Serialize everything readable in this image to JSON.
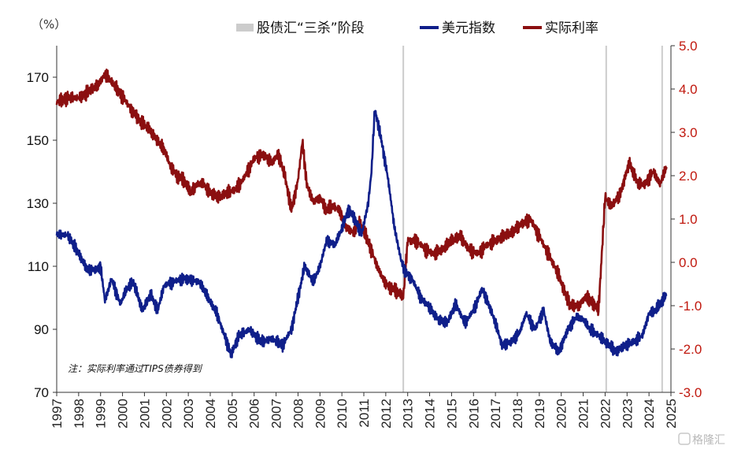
{
  "chart_data": {
    "type": "line",
    "left_unit": "（%）",
    "legend": {
      "shade": "股债汇“三杀”阶段",
      "dxy": "美元指数",
      "real": "实际利率"
    },
    "note": "注：实际利率通过TIPS债券得到",
    "watermark": "格隆汇",
    "colors": {
      "dxy": "#0f1f8a",
      "real": "#8b0f10",
      "shade": "#cccccc",
      "right_axis": "#c0180e"
    },
    "x_ticks": [
      "1997",
      "1998",
      "1999",
      "2000",
      "2001",
      "2002",
      "2003",
      "2004",
      "2005",
      "2006",
      "2007",
      "2008",
      "2009",
      "2010",
      "2011",
      "2012",
      "2013",
      "2014",
      "2015",
      "2016",
      "2017",
      "2018",
      "2019",
      "2020",
      "2021",
      "2022",
      "2023",
      "2024",
      "2025"
    ],
    "xlim": [
      1997,
      2025
    ],
    "left_axis": {
      "ylim": [
        70,
        180
      ],
      "ticks": [
        "70",
        "90",
        "110",
        "130",
        "150",
        "170"
      ]
    },
    "right_axis": {
      "ylim": [
        -3.0,
        5.0
      ],
      "ticks": [
        "-3.0",
        "-2.0",
        "-1.0",
        "0.0",
        "1.0",
        "2.0",
        "3.0",
        "4.0",
        "5.0"
      ]
    },
    "shaded_periods": [
      2012.8,
      2022.05,
      2024.6
    ],
    "series": [
      {
        "name": "美元指数",
        "axis": "left",
        "x": [
          1997.0,
          1997.5,
          1998.0,
          1998.4,
          1998.8,
          1999.0,
          1999.2,
          1999.5,
          1999.9,
          2000.2,
          2000.5,
          2000.9,
          2001.3,
          2001.6,
          2001.9,
          2002.3,
          2002.7,
          2003.0,
          2003.5,
          2003.9,
          2004.3,
          2004.7,
          2004.95,
          2005.3,
          2005.8,
          2006.3,
          2006.8,
          2007.3,
          2007.7,
          2008.0,
          2008.3,
          2008.7,
          2009.0,
          2009.3,
          2009.7,
          2010.0,
          2010.3,
          2010.6,
          2010.9,
          2011.2,
          2011.35,
          2011.5,
          2011.8,
          2012.1,
          2012.4,
          2012.7,
          2012.9,
          2013.2,
          2013.6,
          2014.0,
          2014.4,
          2014.8,
          2015.2,
          2015.6,
          2016.0,
          2016.4,
          2016.8,
          2017.0,
          2017.3,
          2017.7,
          2018.1,
          2018.4,
          2018.8,
          2019.2,
          2019.5,
          2019.9,
          2020.3,
          2020.7,
          2021.0,
          2021.3,
          2021.7,
          2022.0,
          2022.5,
          2022.9,
          2023.3,
          2023.7,
          2024.0,
          2024.3,
          2024.6,
          2024.8
        ],
        "values": [
          120,
          120,
          114,
          109,
          109,
          110,
          99,
          106,
          98,
          103,
          105,
          96,
          101,
          96,
          104,
          105,
          106,
          106,
          105,
          100,
          95,
          87,
          82,
          88,
          90,
          86,
          87,
          85,
          90,
          100,
          110,
          105,
          110,
          118,
          117,
          122,
          128,
          125,
          120,
          130,
          140,
          160,
          150,
          138,
          122,
          112,
          108,
          106,
          100,
          97,
          93,
          92,
          98,
          92,
          96,
          103,
          96,
          92,
          85,
          86,
          89,
          95,
          90,
          96,
          86,
          83,
          90,
          94,
          93,
          90,
          88,
          86,
          83,
          85,
          86,
          88,
          95,
          96,
          99,
          101
        ]
      },
      {
        "name": "实际利率",
        "axis": "right",
        "x": [
          1997.0,
          1997.5,
          1998.0,
          1998.5,
          1998.9,
          1999.2,
          1999.6,
          1999.9,
          2000.3,
          2000.6,
          2000.9,
          2001.2,
          2001.6,
          2001.9,
          2002.2,
          2002.5,
          2002.8,
          2003.1,
          2003.4,
          2003.7,
          2004.0,
          2004.4,
          2004.8,
          2005.2,
          2005.6,
          2006.0,
          2006.4,
          2006.8,
          2007.1,
          2007.4,
          2007.7,
          2008.0,
          2008.2,
          2008.4,
          2008.7,
          2009.0,
          2009.3,
          2009.6,
          2009.9,
          2010.2,
          2010.5,
          2010.8,
          2011.1,
          2011.4,
          2011.7,
          2012.0,
          2012.3,
          2012.6,
          2012.8,
          2013.0,
          2013.4,
          2013.8,
          2014.2,
          2014.6,
          2015.0,
          2015.4,
          2015.8,
          2016.2,
          2016.6,
          2017.0,
          2017.4,
          2017.8,
          2018.2,
          2018.6,
          2019.0,
          2019.4,
          2019.8,
          2020.1,
          2020.4,
          2020.8,
          2021.1,
          2021.4,
          2021.7,
          2022.0,
          2022.3,
          2022.7,
          2023.1,
          2023.5,
          2023.8,
          2024.2,
          2024.5,
          2024.8
        ],
        "values": [
          3.7,
          3.8,
          3.8,
          3.95,
          4.1,
          4.35,
          4.1,
          3.9,
          3.6,
          3.4,
          3.2,
          3.1,
          2.8,
          2.6,
          2.2,
          2.0,
          1.9,
          1.6,
          1.8,
          1.8,
          1.6,
          1.5,
          1.6,
          1.7,
          2.0,
          2.4,
          2.5,
          2.3,
          2.5,
          2.0,
          1.2,
          1.9,
          2.8,
          1.8,
          1.4,
          1.5,
          1.2,
          1.3,
          1.2,
          0.8,
          0.7,
          0.9,
          0.6,
          0.2,
          -0.2,
          -0.5,
          -0.6,
          -0.7,
          -0.8,
          0.5,
          0.5,
          0.3,
          0.2,
          0.3,
          0.5,
          0.6,
          0.3,
          0.2,
          0.4,
          0.5,
          0.6,
          0.7,
          0.9,
          1.0,
          0.6,
          0.2,
          -0.2,
          -0.6,
          -1.0,
          -1.0,
          -0.8,
          -0.9,
          -1.1,
          1.5,
          1.3,
          1.6,
          2.3,
          1.8,
          1.8,
          2.1,
          1.8,
          2.2
        ]
      }
    ]
  }
}
